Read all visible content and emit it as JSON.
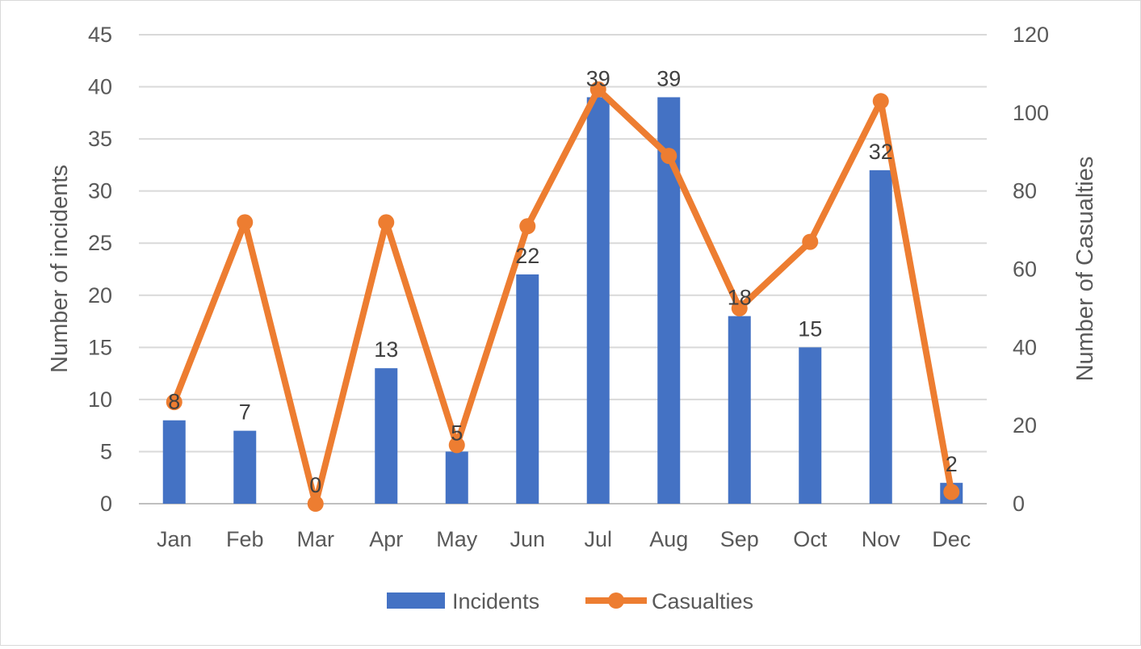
{
  "chart_data": {
    "type": "bar",
    "categories": [
      "Jan",
      "Feb",
      "Mar",
      "Apr",
      "May",
      "Jun",
      "Jul",
      "Aug",
      "Sep",
      "Oct",
      "Nov",
      "Dec"
    ],
    "series": [
      {
        "name": "Incidents",
        "type": "bar",
        "axis": "left",
        "color": "#4472C4",
        "values": [
          8,
          7,
          0,
          13,
          5,
          22,
          39,
          39,
          18,
          15,
          32,
          2
        ]
      },
      {
        "name": "Casualties",
        "type": "line",
        "axis": "right",
        "color": "#ED7D31",
        "values": [
          26,
          72,
          0,
          72,
          15,
          71,
          106,
          89,
          50,
          67,
          103,
          3
        ]
      }
    ],
    "ylabel": "Number of incidents",
    "y2label": "Number of Casualties",
    "ylim": [
      0,
      45
    ],
    "y2lim": [
      0,
      120
    ],
    "yticks": [
      "0",
      "5",
      "10",
      "15",
      "20",
      "25",
      "30",
      "35",
      "40",
      "45"
    ],
    "y2ticks": [
      "0",
      "20",
      "40",
      "60",
      "80",
      "100",
      "120"
    ],
    "data_labels": [
      "8",
      "7",
      "0",
      "13",
      "5",
      "22",
      "39",
      "39",
      "18",
      "15",
      "32",
      "2"
    ],
    "grid": true,
    "legend_position": "bottom"
  }
}
